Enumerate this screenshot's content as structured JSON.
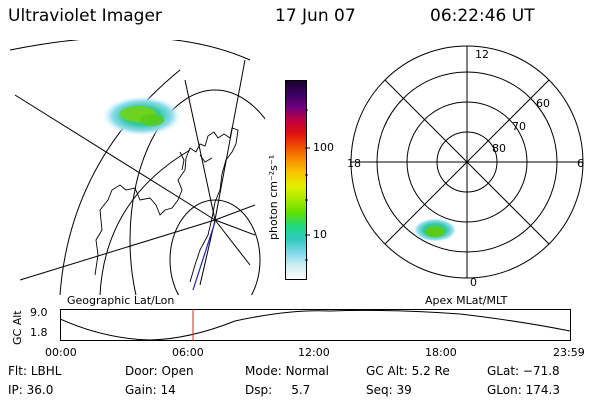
{
  "header": {
    "title": "Ultraviolet Imager",
    "date": "17 Jun 07",
    "time": "06:22:46 UT"
  },
  "colorbar": {
    "unit_label": "photon cm⁻²s⁻¹",
    "tick_100": "100",
    "tick_10": "10",
    "colors_top_to_bottom": [
      "#1a0030",
      "#3a0060",
      "#700080",
      "#c00040",
      "#e01010",
      "#f05000",
      "#f89000",
      "#f8c800",
      "#e0f000",
      "#a8e800",
      "#60e000",
      "#20d880",
      "#30c8c0",
      "#80d8e8",
      "#d0eef4",
      "#ffffff"
    ]
  },
  "left_panel": {
    "label": "Geographic Lat/Lon"
  },
  "right_panel": {
    "label": "Apex MLat/MLT",
    "mlt_labels": {
      "top": "12",
      "left": "18",
      "right": "6",
      "bottom": "0"
    },
    "lat_labels": {
      "outer": "60",
      "middle": "70",
      "inner": "80"
    }
  },
  "altitude_plot": {
    "ylabel": "GC Alt",
    "ytick_top": "9.0",
    "ytick_bottom": "1.8",
    "xticks": [
      "00:00",
      "06:00",
      "12:00",
      "18:00",
      "23:59"
    ],
    "marker_color": "#c03020"
  },
  "info": {
    "filter_label": "Flt:",
    "filter_value": "LBHL",
    "ip_label": "IP:",
    "ip_value": "36.0",
    "door_label": "Door:",
    "door_value": "Open",
    "gain_label": "Gain:",
    "gain_value": "14",
    "mode_label": "Mode:",
    "mode_value": "Normal",
    "dsp_label": "Dsp:",
    "dsp_value": "5.7",
    "gcalt_label": "GC Alt:",
    "gcalt_value": "5.2 Re",
    "seq_label": "Seq:",
    "seq_value": "39",
    "glat_label": "GLat:",
    "glat_value": "−71.8",
    "glon_label": "GLon:",
    "glon_value": "174.3"
  }
}
